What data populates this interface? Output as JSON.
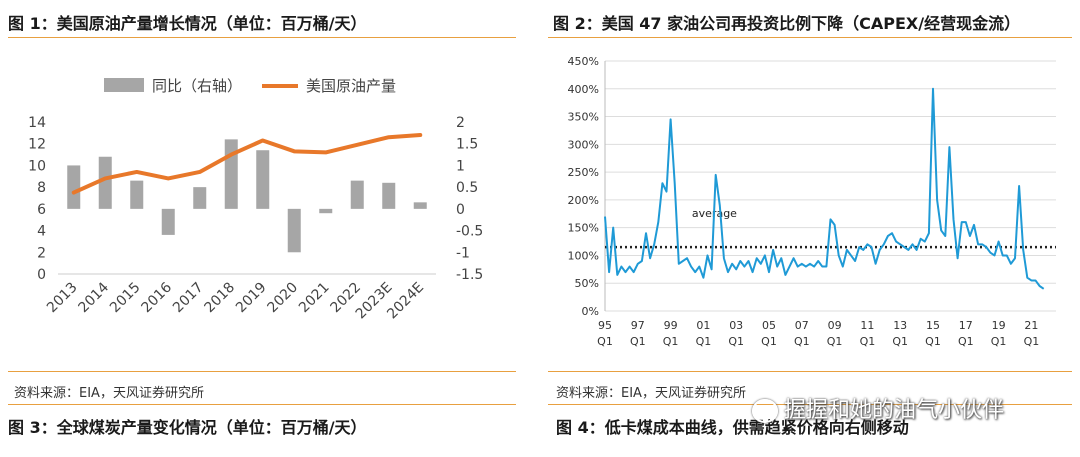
{
  "fig1": {
    "title": "图 1：美国原油产量增长情况（单位：百万桶/天）",
    "source": "资料来源：EIA，天风证券研究所",
    "chart_data": {
      "type": "bar+line",
      "categories": [
        "2013",
        "2014",
        "2015",
        "2016",
        "2017",
        "2018",
        "2019",
        "2020",
        "2021",
        "2022",
        "2023E",
        "2024E"
      ],
      "legend": [
        "同比（右轴）",
        "美国原油产量"
      ],
      "legend_position": "top",
      "left_axis": {
        "ticks": [
          "14",
          "12",
          "10",
          "8",
          "6",
          "4",
          "2",
          "0"
        ],
        "range": [
          0,
          14
        ]
      },
      "right_axis": {
        "ticks": [
          "2",
          "1.5",
          "1",
          "0.5",
          "0",
          "-0.5",
          "-1",
          "-1.5"
        ],
        "range": [
          -1.5,
          2
        ]
      },
      "series": [
        {
          "name": "同比（右轴）",
          "type": "bar",
          "axis": "right",
          "color": "#a6a6a6",
          "values": [
            1.0,
            1.2,
            0.65,
            -0.6,
            0.5,
            1.6,
            1.35,
            -1.0,
            -0.1,
            0.65,
            0.6,
            0.15
          ]
        },
        {
          "name": "美国原油产量",
          "type": "line",
          "axis": "left",
          "color": "#e8782a",
          "values": [
            7.5,
            8.8,
            9.4,
            8.8,
            9.4,
            11.0,
            12.3,
            11.3,
            11.2,
            11.9,
            12.6,
            12.8
          ]
        }
      ],
      "grid": true
    }
  },
  "fig2": {
    "title": "图 2：美国 47 家油公司再投资比例下降（CAPEX/经营现金流）",
    "source": "资料来源：EIA，天风证券研究所",
    "chart_data": {
      "type": "line",
      "annotation": "average",
      "average_value": 115,
      "y_ticks": [
        "450%",
        "400%",
        "350%",
        "300%",
        "250%",
        "200%",
        "150%",
        "100%",
        "50%",
        "0%"
      ],
      "y_range": [
        0,
        450
      ],
      "x_ticks": [
        {
          "year": "95",
          "q": "Q1"
        },
        {
          "year": "97",
          "q": "Q1"
        },
        {
          "year": "99",
          "q": "Q1"
        },
        {
          "year": "01",
          "q": "Q1"
        },
        {
          "year": "03",
          "q": "Q1"
        },
        {
          "year": "05",
          "q": "Q1"
        },
        {
          "year": "07",
          "q": "Q1"
        },
        {
          "year": "09",
          "q": "Q1"
        },
        {
          "year": "11",
          "q": "Q1"
        },
        {
          "year": "13",
          "q": "Q1"
        },
        {
          "year": "15",
          "q": "Q1"
        },
        {
          "year": "17",
          "q": "Q1"
        },
        {
          "year": "19",
          "q": "Q1"
        },
        {
          "year": "21",
          "q": "Q1"
        }
      ],
      "x_range_years": [
        1995,
        2022.5
      ],
      "series": [
        {
          "color": "#1f9ad6",
          "points": [
            [
              1995.0,
              170
            ],
            [
              1995.25,
              70
            ],
            [
              1995.5,
              150
            ],
            [
              1995.75,
              65
            ],
            [
              1996.0,
              80
            ],
            [
              1996.25,
              70
            ],
            [
              1996.5,
              80
            ],
            [
              1996.75,
              70
            ],
            [
              1997.0,
              85
            ],
            [
              1997.25,
              90
            ],
            [
              1997.5,
              140
            ],
            [
              1997.75,
              95
            ],
            [
              1998.0,
              120
            ],
            [
              1998.25,
              160
            ],
            [
              1998.5,
              230
            ],
            [
              1998.75,
              215
            ],
            [
              1999.0,
              345
            ],
            [
              1999.25,
              230
            ],
            [
              1999.5,
              85
            ],
            [
              1999.75,
              90
            ],
            [
              2000.0,
              95
            ],
            [
              2000.25,
              80
            ],
            [
              2000.5,
              70
            ],
            [
              2000.75,
              80
            ],
            [
              2001.0,
              60
            ],
            [
              2001.25,
              100
            ],
            [
              2001.5,
              75
            ],
            [
              2001.75,
              245
            ],
            [
              2002.0,
              190
            ],
            [
              2002.25,
              95
            ],
            [
              2002.5,
              70
            ],
            [
              2002.75,
              85
            ],
            [
              2003.0,
              75
            ],
            [
              2003.25,
              90
            ],
            [
              2003.5,
              80
            ],
            [
              2003.75,
              90
            ],
            [
              2004.0,
              70
            ],
            [
              2004.25,
              95
            ],
            [
              2004.5,
              85
            ],
            [
              2004.75,
              100
            ],
            [
              2005.0,
              70
            ],
            [
              2005.25,
              110
            ],
            [
              2005.5,
              80
            ],
            [
              2005.75,
              95
            ],
            [
              2006.0,
              65
            ],
            [
              2006.25,
              80
            ],
            [
              2006.5,
              95
            ],
            [
              2006.75,
              80
            ],
            [
              2007.0,
              85
            ],
            [
              2007.25,
              80
            ],
            [
              2007.5,
              85
            ],
            [
              2007.75,
              80
            ],
            [
              2008.0,
              90
            ],
            [
              2008.25,
              80
            ],
            [
              2008.5,
              80
            ],
            [
              2008.75,
              165
            ],
            [
              2009.0,
              155
            ],
            [
              2009.25,
              100
            ],
            [
              2009.5,
              80
            ],
            [
              2009.75,
              110
            ],
            [
              2010.0,
              100
            ],
            [
              2010.25,
              90
            ],
            [
              2010.5,
              115
            ],
            [
              2010.75,
              110
            ],
            [
              2011.0,
              120
            ],
            [
              2011.25,
              115
            ],
            [
              2011.5,
              85
            ],
            [
              2011.75,
              110
            ],
            [
              2012.0,
              120
            ],
            [
              2012.25,
              135
            ],
            [
              2012.5,
              140
            ],
            [
              2012.75,
              125
            ],
            [
              2013.0,
              120
            ],
            [
              2013.25,
              115
            ],
            [
              2013.5,
              110
            ],
            [
              2013.75,
              120
            ],
            [
              2014.0,
              110
            ],
            [
              2014.25,
              130
            ],
            [
              2014.5,
              125
            ],
            [
              2014.75,
              140
            ],
            [
              2015.0,
              400
            ],
            [
              2015.25,
              200
            ],
            [
              2015.5,
              145
            ],
            [
              2015.75,
              135
            ],
            [
              2016.0,
              295
            ],
            [
              2016.25,
              165
            ],
            [
              2016.5,
              95
            ],
            [
              2016.75,
              160
            ],
            [
              2017.0,
              160
            ],
            [
              2017.25,
              135
            ],
            [
              2017.5,
              155
            ],
            [
              2017.75,
              120
            ],
            [
              2018.0,
              120
            ],
            [
              2018.25,
              115
            ],
            [
              2018.5,
              105
            ],
            [
              2018.75,
              100
            ],
            [
              2019.0,
              125
            ],
            [
              2019.25,
              100
            ],
            [
              2019.5,
              100
            ],
            [
              2019.75,
              85
            ],
            [
              2020.0,
              95
            ],
            [
              2020.25,
              225
            ],
            [
              2020.5,
              110
            ],
            [
              2020.75,
              60
            ],
            [
              2021.0,
              55
            ],
            [
              2021.25,
              55
            ],
            [
              2021.5,
              45
            ],
            [
              2021.75,
              40
            ]
          ]
        }
      ],
      "grid": true
    }
  },
  "fig3": {
    "title": "图 3：全球煤炭产量变化情况（单位：百万桶/天）"
  },
  "fig4": {
    "title": "图 4：低卡煤成本曲线，供需趋紧价格向右侧移动"
  },
  "watermark": {
    "text": "握握和她的油气小伙伴"
  }
}
